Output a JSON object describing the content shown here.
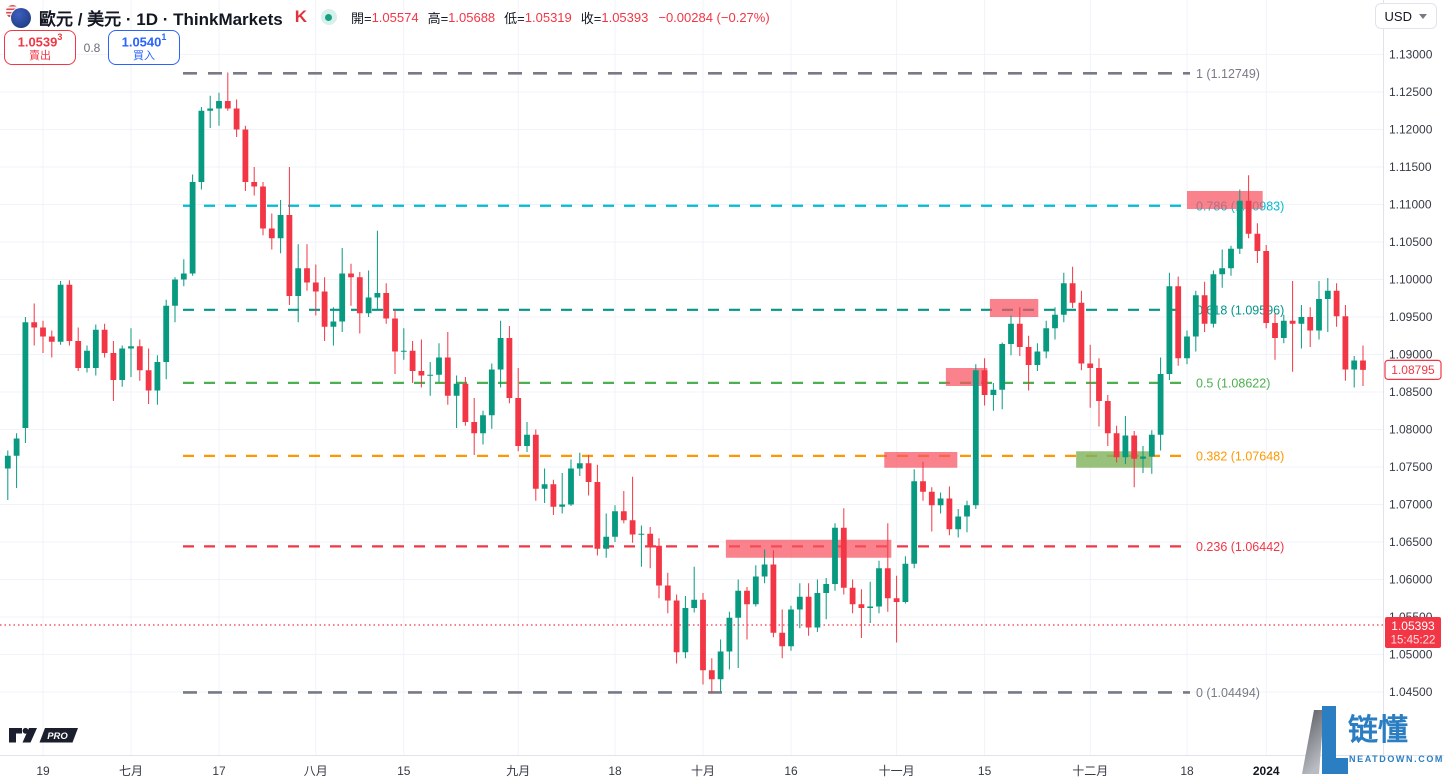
{
  "toolbar": {
    "symbol_title": "歐元 / 美元 · 1D · ThinkMarkets",
    "broker_icon": "thinkmarkets-icon",
    "market_status_icon": "market-open-dot",
    "ohlc": {
      "open_label": "開=",
      "open": "1.05574",
      "high_label": "高=",
      "high": "1.05688",
      "low_label": "低=",
      "low": "1.05319",
      "close_label": "收=",
      "close": "1.05393",
      "change": "−0.00284 (−0.27%)"
    },
    "currency_selector": "USD"
  },
  "trade_buttons": {
    "sell": {
      "price_main": "1.0539",
      "price_sup": "3",
      "label": "賣出"
    },
    "spread": "0.8",
    "buy": {
      "price_main": "1.0540",
      "price_sup": "1",
      "label": "買入"
    }
  },
  "watermarks": {
    "tv_badge": "PRO",
    "brand_name": "链懂",
    "brand_domain": "NEATDOWN.COM"
  },
  "chart_data": {
    "type": "candlestick",
    "title": "歐元 / 美元 1D (EUR/USD daily with Fibonacci retracement)",
    "y_axis": {
      "min": 1.045,
      "max": 1.13,
      "tick_step": 0.005,
      "tick_labels": [
        "1.13000",
        "1.12500",
        "1.12000",
        "1.11500",
        "1.11000",
        "1.10500",
        "1.10000",
        "1.09500",
        "1.09000",
        "1.08500",
        "1.08000",
        "1.07500",
        "1.07000",
        "1.06500",
        "1.06000",
        "1.05500",
        "1.05000",
        "1.04500"
      ]
    },
    "x_ticks": [
      {
        "i": 4,
        "label": "19"
      },
      {
        "i": 14,
        "label": "七月"
      },
      {
        "i": 24,
        "label": "17"
      },
      {
        "i": 35,
        "label": "八月"
      },
      {
        "i": 45,
        "label": "15"
      },
      {
        "i": 58,
        "label": "九月"
      },
      {
        "i": 69,
        "label": "18"
      },
      {
        "i": 79,
        "label": "十月"
      },
      {
        "i": 89,
        "label": "16"
      },
      {
        "i": 101,
        "label": "十一月"
      },
      {
        "i": 111,
        "label": "15"
      },
      {
        "i": 123,
        "label": "十二月"
      },
      {
        "i": 134,
        "label": "18"
      },
      {
        "i": 143,
        "label": "2024",
        "bold": true
      }
    ],
    "fib_levels": [
      {
        "level": "1",
        "price": 1.12749,
        "label": "1 (1.12749)",
        "color": "#787b86",
        "wide": true
      },
      {
        "level": "0.786",
        "price": 1.10983,
        "label": "0.786 (1.10983)",
        "color": "#00bcd4"
      },
      {
        "level": "0.618",
        "price": 1.09596,
        "label": "0.618 (1.09596)",
        "color": "#009688"
      },
      {
        "level": "0.5",
        "price": 1.08622,
        "label": "0.5 (1.08622)",
        "color": "#4caf50"
      },
      {
        "level": "0.382",
        "price": 1.07648,
        "label": "0.382 (1.07648)",
        "color": "#ff9800"
      },
      {
        "level": "0.236",
        "price": 1.06442,
        "label": "0.236 (1.06442)",
        "color": "#f23645"
      },
      {
        "level": "0",
        "price": 1.04494,
        "label": "0 (1.04494)",
        "color": "#787b86",
        "wide": true
      }
    ],
    "zones": [
      {
        "i1": 81.6,
        "i2": 100.4,
        "top": 1.0653,
        "bottom": 1.0629,
        "fill": "rgba(247,82,95,0.72)",
        "kind": "supply"
      },
      {
        "i1": 99.6,
        "i2": 107.9,
        "top": 1.077,
        "bottom": 1.0749,
        "fill": "rgba(247,82,95,0.72)",
        "kind": "supply"
      },
      {
        "i1": 106.6,
        "i2": 111.3,
        "top": 1.0882,
        "bottom": 1.0858,
        "fill": "rgba(247,82,95,0.72)",
        "kind": "supply"
      },
      {
        "i1": 111.6,
        "i2": 117.1,
        "top": 1.0974,
        "bottom": 1.095,
        "fill": "rgba(247,82,95,0.72)",
        "kind": "supply"
      },
      {
        "i1": 134.0,
        "i2": 142.6,
        "top": 1.1118,
        "bottom": 1.1094,
        "fill": "rgba(247,82,95,0.72)",
        "kind": "supply"
      },
      {
        "i1": 121.4,
        "i2": 129.9,
        "top": 1.0771,
        "bottom": 1.0749,
        "fill": "rgba(126,179,91,0.80)",
        "kind": "demand"
      }
    ],
    "current_price": {
      "price": 1.05393,
      "label": "1.05393",
      "time": "15:45:22",
      "color": "#f23645"
    },
    "last_price_tag": {
      "price": 1.08795,
      "label": "1.08795",
      "color": "#f23645"
    },
    "colors": {
      "up": "#089981",
      "down": "#f23645",
      "grid": "#f0f3fa",
      "axis_border": "#e0e3eb",
      "axis_text": "#363a45"
    },
    "candles": [
      [
        1.0748,
        1.0772,
        1.0706,
        1.0765
      ],
      [
        1.0765,
        1.0795,
        1.0722,
        1.0788
      ],
      [
        1.0802,
        1.095,
        1.0782,
        1.0943
      ],
      [
        1.0943,
        1.0968,
        1.0912,
        1.0936
      ],
      [
        1.0936,
        1.0945,
        1.0902,
        1.0924
      ],
      [
        1.0924,
        1.0932,
        1.0896,
        1.0917
      ],
      [
        1.0917,
        1.0998,
        1.0913,
        1.0993
      ],
      [
        1.0993,
        1.0999,
        1.0912,
        1.0918
      ],
      [
        1.0918,
        1.0936,
        1.0878,
        1.0882
      ],
      [
        1.0882,
        1.0912,
        1.0876,
        1.0905
      ],
      [
        1.0882,
        1.094,
        1.0872,
        1.0933
      ],
      [
        1.0933,
        1.0941,
        1.0896,
        1.0902
      ],
      [
        1.0902,
        1.0918,
        1.0838,
        1.0866
      ],
      [
        1.0866,
        1.0912,
        1.0857,
        1.0908
      ],
      [
        1.0908,
        1.0935,
        1.087,
        1.0911
      ],
      [
        1.0911,
        1.092,
        1.0865,
        1.0879
      ],
      [
        1.0879,
        1.0908,
        1.0834,
        1.0852
      ],
      [
        1.0852,
        1.0899,
        1.0833,
        1.089
      ],
      [
        1.089,
        1.0973,
        1.0867,
        1.0965
      ],
      [
        1.0965,
        1.1003,
        1.0943,
        1.1
      ],
      [
        1.1,
        1.1027,
        1.0991,
        1.1008
      ],
      [
        1.1008,
        1.114,
        1.1005,
        1.113
      ],
      [
        1.113,
        1.123,
        1.112,
        1.1225
      ],
      [
        1.1225,
        1.1245,
        1.1202,
        1.1228
      ],
      [
        1.1228,
        1.1249,
        1.1205,
        1.1238
      ],
      [
        1.1238,
        1.1276,
        1.1225,
        1.1228
      ],
      [
        1.1228,
        1.124,
        1.119,
        1.12
      ],
      [
        1.12,
        1.1205,
        1.1118,
        1.113
      ],
      [
        1.113,
        1.115,
        1.1112,
        1.1124
      ],
      [
        1.1124,
        1.113,
        1.1059,
        1.1068
      ],
      [
        1.1068,
        1.1088,
        1.104,
        1.1055
      ],
      [
        1.1055,
        1.1106,
        1.1035,
        1.1086
      ],
      [
        1.1086,
        1.115,
        1.0966,
        1.0978
      ],
      [
        1.0978,
        1.1047,
        1.0943,
        1.1015
      ],
      [
        1.1015,
        1.1047,
        1.0985,
        1.0996
      ],
      [
        1.0996,
        1.102,
        1.0952,
        1.0984
      ],
      [
        1.0984,
        1.1003,
        1.0918,
        1.0937
      ],
      [
        1.0937,
        1.0963,
        1.0912,
        1.0944
      ],
      [
        1.0944,
        1.1042,
        1.093,
        1.1008
      ],
      [
        1.1008,
        1.1021,
        1.0965,
        1.1003
      ],
      [
        1.1003,
        1.101,
        1.0928,
        1.0955
      ],
      [
        1.0955,
        1.1012,
        1.095,
        1.0976
      ],
      [
        1.0976,
        1.1065,
        1.096,
        1.0982
      ],
      [
        1.0982,
        1.0995,
        1.0941,
        1.0948
      ],
      [
        1.0948,
        1.096,
        1.0874,
        1.0904
      ],
      [
        1.0904,
        1.0935,
        1.0893,
        1.0905
      ],
      [
        1.0905,
        1.0918,
        1.0862,
        1.0878
      ],
      [
        1.0878,
        1.092,
        1.0856,
        1.0872
      ],
      [
        1.0872,
        1.089,
        1.0845,
        1.0873
      ],
      [
        1.0873,
        1.0915,
        1.0863,
        1.0896
      ],
      [
        1.0896,
        1.093,
        1.0833,
        1.0845
      ],
      [
        1.0845,
        1.0872,
        1.0802,
        1.0861
      ],
      [
        1.0861,
        1.087,
        1.0805,
        1.081
      ],
      [
        1.081,
        1.0842,
        1.0766,
        1.0795
      ],
      [
        1.0795,
        1.0825,
        1.078,
        1.0819
      ],
      [
        1.0819,
        1.0888,
        1.0801,
        1.088
      ],
      [
        1.088,
        1.0945,
        1.0856,
        1.0922
      ],
      [
        1.0922,
        1.0938,
        1.0835,
        1.0842
      ],
      [
        1.0842,
        1.0882,
        1.0771,
        1.0778
      ],
      [
        1.0778,
        1.081,
        1.077,
        1.0793
      ],
      [
        1.0793,
        1.08,
        1.0705,
        1.0721
      ],
      [
        1.0721,
        1.0748,
        1.0702,
        1.0727
      ],
      [
        1.0727,
        1.0733,
        1.0686,
        1.0697
      ],
      [
        1.0697,
        1.0742,
        1.0688,
        1.07
      ],
      [
        1.07,
        1.076,
        1.0698,
        1.0748
      ],
      [
        1.0748,
        1.0769,
        1.0738,
        1.0755
      ],
      [
        1.0755,
        1.0766,
        1.0712,
        1.073
      ],
      [
        1.073,
        1.0753,
        1.0632,
        1.0641
      ],
      [
        1.0641,
        1.0688,
        1.0629,
        1.0657
      ],
      [
        1.0657,
        1.0699,
        1.065,
        1.0691
      ],
      [
        1.0691,
        1.0718,
        1.0675,
        1.0679
      ],
      [
        1.0679,
        1.0737,
        1.0649,
        1.066
      ],
      [
        1.066,
        1.0672,
        1.0617,
        1.0661
      ],
      [
        1.0661,
        1.067,
        1.0615,
        1.0645
      ],
      [
        1.0645,
        1.0655,
        1.0575,
        1.0592
      ],
      [
        1.0592,
        1.0609,
        1.0555,
        1.0572
      ],
      [
        1.0572,
        1.058,
        1.0488,
        1.0503
      ],
      [
        1.0503,
        1.0578,
        1.0495,
        1.0562
      ],
      [
        1.0562,
        1.0617,
        1.0556,
        1.0573
      ],
      [
        1.0573,
        1.0582,
        1.046,
        1.0479
      ],
      [
        1.0479,
        1.0495,
        1.0448,
        1.0467
      ],
      [
        1.0467,
        1.052,
        1.045,
        1.0504
      ],
      [
        1.0504,
        1.0557,
        1.048,
        1.0549
      ],
      [
        1.0549,
        1.06,
        1.0482,
        1.0585
      ],
      [
        1.0585,
        1.059,
        1.052,
        1.0567
      ],
      [
        1.0567,
        1.0619,
        1.0564,
        1.0604
      ],
      [
        1.0604,
        1.064,
        1.0595,
        1.062
      ],
      [
        1.062,
        1.0639,
        1.0523,
        1.0529
      ],
      [
        1.0529,
        1.056,
        1.0495,
        1.0511
      ],
      [
        1.0511,
        1.0565,
        1.0505,
        1.056
      ],
      [
        1.056,
        1.0595,
        1.0535,
        1.0577
      ],
      [
        1.0577,
        1.0595,
        1.0525,
        1.0536
      ],
      [
        1.0536,
        1.06,
        1.053,
        1.0582
      ],
      [
        1.0582,
        1.0602,
        1.0547,
        1.0594
      ],
      [
        1.0594,
        1.0675,
        1.0585,
        1.0669
      ],
      [
        1.0669,
        1.0695,
        1.058,
        1.0589
      ],
      [
        1.0589,
        1.06,
        1.0555,
        1.0567
      ],
      [
        1.0567,
        1.0587,
        1.0522,
        1.0562
      ],
      [
        1.0562,
        1.0597,
        1.0542,
        1.0564
      ],
      [
        1.0564,
        1.0625,
        1.0555,
        1.0615
      ],
      [
        1.0615,
        1.0675,
        1.0557,
        1.0575
      ],
      [
        1.0575,
        1.0605,
        1.0516,
        1.057
      ],
      [
        1.057,
        1.0631,
        1.0568,
        1.0621
      ],
      [
        1.0621,
        1.0747,
        1.0615,
        1.0731
      ],
      [
        1.0731,
        1.0757,
        1.0705,
        1.0717
      ],
      [
        1.0717,
        1.0723,
        1.0664,
        1.0699
      ],
      [
        1.0699,
        1.0716,
        1.0688,
        1.0708
      ],
      [
        1.0708,
        1.0724,
        1.0659,
        1.0667
      ],
      [
        1.0667,
        1.0694,
        1.0656,
        1.0684
      ],
      [
        1.0684,
        1.0705,
        1.0663,
        1.0699
      ],
      [
        1.0699,
        1.0887,
        1.0694,
        1.0879
      ],
      [
        1.0879,
        1.0895,
        1.0832,
        1.0846
      ],
      [
        1.0846,
        1.0862,
        1.0825,
        1.0853
      ],
      [
        1.0853,
        1.0916,
        1.0827,
        1.0914
      ],
      [
        1.0914,
        1.0952,
        1.0899,
        1.0941
      ],
      [
        1.0941,
        1.0963,
        1.0898,
        1.091
      ],
      [
        1.091,
        1.0925,
        1.0852,
        1.0886
      ],
      [
        1.0886,
        1.0915,
        1.0878,
        1.0904
      ],
      [
        1.0904,
        1.0945,
        1.0895,
        1.0935
      ],
      [
        1.0935,
        1.0963,
        1.092,
        1.0953
      ],
      [
        1.0953,
        1.1009,
        1.0943,
        1.0995
      ],
      [
        1.0995,
        1.1017,
        1.0962,
        1.0969
      ],
      [
        1.0969,
        1.0985,
        1.0879,
        1.0888
      ],
      [
        1.0888,
        1.0913,
        1.0829,
        1.0882
      ],
      [
        1.0882,
        1.0895,
        1.0804,
        1.0838
      ],
      [
        1.0838,
        1.0846,
        1.0778,
        1.0795
      ],
      [
        1.0795,
        1.0805,
        1.0756,
        1.0763
      ],
      [
        1.0763,
        1.0818,
        1.0754,
        1.0792
      ],
      [
        1.0792,
        1.0798,
        1.0723,
        1.0761
      ],
      [
        1.0761,
        1.0778,
        1.0742,
        1.0764
      ],
      [
        1.0764,
        1.0799,
        1.0741,
        1.0793
      ],
      [
        1.0793,
        1.0896,
        1.0772,
        1.0874
      ],
      [
        1.0874,
        1.1009,
        1.0866,
        1.0991
      ],
      [
        1.0991,
        1.1004,
        1.0885,
        1.0895
      ],
      [
        1.0895,
        1.0932,
        1.0887,
        1.0924
      ],
      [
        1.0924,
        1.0985,
        1.0904,
        1.0979
      ],
      [
        1.0979,
        1.0997,
        1.093,
        1.0941
      ],
      [
        1.0941,
        1.1012,
        1.0936,
        1.1007
      ],
      [
        1.1007,
        1.104,
        1.0989,
        1.1015
      ],
      [
        1.1015,
        1.1045,
        1.1005,
        1.1041
      ],
      [
        1.1041,
        1.112,
        1.1034,
        1.1105
      ],
      [
        1.1105,
        1.1139,
        1.1055,
        1.1061
      ],
      [
        1.1061,
        1.1075,
        1.1022,
        1.1038
      ],
      [
        1.1038,
        1.1046,
        1.0935,
        1.0942
      ],
      [
        1.0942,
        1.0955,
        1.0893,
        1.0922
      ],
      [
        1.0922,
        1.0953,
        1.0915,
        1.0945
      ],
      [
        1.0945,
        1.0998,
        1.0877,
        1.0941
      ],
      [
        1.0941,
        1.0966,
        1.0908,
        1.095
      ],
      [
        1.095,
        1.0963,
        1.091,
        1.0932
      ],
      [
        1.0932,
        1.0998,
        1.092,
        1.0974
      ],
      [
        1.0974,
        1.1002,
        1.093,
        1.0985
      ],
      [
        1.0985,
        1.0995,
        1.0937,
        1.0951
      ],
      [
        1.0951,
        1.0966,
        1.0865,
        1.088
      ],
      [
        1.088,
        1.0898,
        1.0856,
        1.0892
      ],
      [
        1.0892,
        1.0912,
        1.0858,
        1.08795
      ]
    ]
  }
}
